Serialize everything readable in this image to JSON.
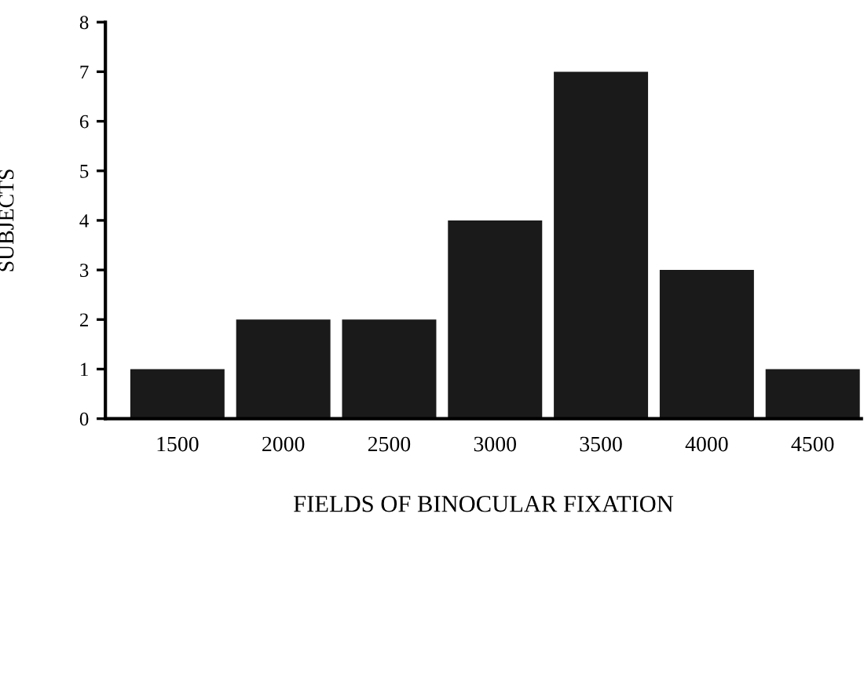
{
  "chart_data": {
    "type": "bar",
    "xlabel": "FIELDS OF BINOCULAR FIXATION",
    "ylabel": "SUBJECTS",
    "categories": [
      "1500",
      "2000",
      "2500",
      "3000",
      "3500",
      "4000",
      "4500"
    ],
    "values": [
      1,
      2,
      2,
      4,
      7,
      3,
      1
    ],
    "color": "#1a1a1a",
    "ylim": [
      0,
      8
    ],
    "yticks": [
      0,
      1,
      2,
      3,
      4,
      5,
      6,
      7,
      8
    ],
    "grid": false,
    "legend": false
  }
}
